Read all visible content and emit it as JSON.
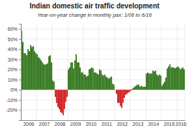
{
  "chart_data": {
    "type": "bar",
    "title": "Indian domestic air traffic development",
    "subtitle": "Year-on-year change in monthly pax: 1/06 to 6/16",
    "categories": [
      "2006",
      null,
      null,
      null,
      null,
      null,
      null,
      null,
      null,
      null,
      null,
      null,
      "2007",
      null,
      null,
      null,
      null,
      null,
      null,
      null,
      null,
      null,
      null,
      null,
      "2008",
      null,
      null,
      null,
      null,
      null,
      null,
      null,
      null,
      null,
      null,
      null,
      "2009",
      null,
      null,
      null,
      null,
      null,
      null,
      null,
      null,
      null,
      null,
      null,
      "2010",
      null,
      null,
      null,
      null,
      null,
      null,
      null,
      null,
      null,
      null,
      null,
      "2011",
      null,
      null,
      null,
      null,
      null,
      null,
      null,
      null,
      null,
      null,
      null,
      "2012",
      null,
      null,
      null,
      null,
      null,
      null,
      null,
      null,
      null,
      null,
      null,
      "2013",
      null,
      null,
      null,
      null,
      null,
      null,
      null,
      null,
      null,
      null,
      null,
      "2014",
      null,
      null,
      null,
      null,
      null,
      null,
      null,
      null,
      null,
      null,
      null,
      "2015",
      null,
      null,
      null,
      null,
      null,
      null,
      null,
      null,
      null,
      null,
      null,
      "2016",
      null,
      null,
      null,
      null,
      null
    ],
    "values": [
      58,
      47,
      36,
      36,
      34,
      40,
      38,
      44,
      42,
      43,
      38,
      36,
      35,
      32,
      31,
      29,
      27,
      25,
      25,
      25,
      26,
      33,
      34,
      27,
      9,
      8,
      -7,
      -13,
      -17,
      -19,
      -22,
      -23,
      -25,
      -19,
      -12,
      -7,
      20,
      22,
      27,
      27,
      21,
      29,
      35,
      27,
      27,
      22,
      17,
      17,
      15,
      15,
      13,
      14,
      20,
      21,
      22,
      21,
      17,
      17,
      16,
      15,
      20,
      19,
      15,
      14,
      15,
      13,
      12,
      11,
      12,
      13,
      6,
      5,
      0,
      -4,
      -13,
      -13,
      -16,
      -18,
      -13,
      -8,
      -5,
      -4,
      -3,
      -2,
      -1,
      1,
      2,
      3,
      4,
      5,
      5,
      3,
      4,
      3,
      3,
      3,
      16,
      17,
      16,
      16,
      16,
      19,
      18,
      19,
      15,
      14,
      15,
      14,
      4,
      6,
      8,
      12,
      21,
      23,
      25,
      22,
      22,
      22,
      21,
      22,
      23,
      22,
      20,
      21,
      22,
      20
    ],
    "colors": [
      "#1a6600",
      "#1a6600",
      "#1a6600",
      "#1a6600",
      "#1a6600",
      "#1a6600",
      "#1a6600",
      "#1a6600",
      "#1a6600",
      "#1a6600",
      "#1a6600",
      "#1a6600",
      "#1a6600",
      "#1a6600",
      "#1a6600",
      "#1a6600",
      "#1a6600",
      "#1a6600",
      "#1a6600",
      "#1a6600",
      "#1a6600",
      "#1a6600",
      "#1a6600",
      "#1a6600",
      "#1a6600",
      "#1a6600",
      "#cc0000",
      "#cc0000",
      "#cc0000",
      "#cc0000",
      "#cc0000",
      "#cc0000",
      "#cc0000",
      "#cc0000",
      "#cc0000",
      "#cc0000",
      "#1a6600",
      "#1a6600",
      "#1a6600",
      "#1a6600",
      "#1a6600",
      "#1a6600",
      "#1a6600",
      "#1a6600",
      "#1a6600",
      "#1a6600",
      "#1a6600",
      "#1a6600",
      "#1a6600",
      "#1a6600",
      "#1a6600",
      "#1a6600",
      "#1a6600",
      "#1a6600",
      "#1a6600",
      "#1a6600",
      "#1a6600",
      "#1a6600",
      "#1a6600",
      "#1a6600",
      "#1a6600",
      "#1a6600",
      "#1a6600",
      "#1a6600",
      "#1a6600",
      "#1a6600",
      "#1a6600",
      "#1a6600",
      "#1a6600",
      "#1a6600",
      "#1a6600",
      "#1a6600",
      "#1a6600",
      "#cc0000",
      "#cc0000",
      "#cc0000",
      "#cc0000",
      "#cc0000",
      "#cc0000",
      "#cc0000",
      "#cc0000",
      "#cc0000",
      "#cc0000",
      "#cc0000",
      "#cc0000",
      "#1a6600",
      "#1a6600",
      "#1a6600",
      "#1a6600",
      "#1a6600",
      "#1a6600",
      "#1a6600",
      "#1a6600",
      "#1a6600",
      "#1a6600",
      "#1a6600",
      "#1a6600",
      "#1a6600",
      "#1a6600",
      "#1a6600",
      "#1a6600",
      "#1a6600",
      "#1a6600",
      "#1a6600",
      "#1a6600",
      "#1a6600",
      "#1a6600",
      "#1a6600",
      "#1a6600",
      "#1a6600",
      "#1a6600",
      "#1a6600",
      "#1a6600",
      "#1a6600",
      "#1a6600",
      "#1a6600",
      "#1a6600",
      "#1a6600",
      "#1a6600",
      "#1a6600",
      "#1a6600",
      "#1a6600",
      "#1a6600",
      "#1a6600",
      "#1a6600",
      "#1a6600"
    ],
    "ylim": [
      -30,
      65
    ],
    "yticks": [
      {
        "value": -20,
        "label": "-20%"
      },
      {
        "value": -10,
        "label": "-10%"
      },
      {
        "value": 0,
        "label": "0%"
      },
      {
        "value": 10,
        "label": "10%"
      },
      {
        "value": 20,
        "label": "20%"
      },
      {
        "value": 30,
        "label": "30%"
      },
      {
        "value": 40,
        "label": "40%"
      },
      {
        "value": 50,
        "label": "50%"
      },
      {
        "value": 60,
        "label": "60%"
      }
    ],
    "grid": true
  }
}
